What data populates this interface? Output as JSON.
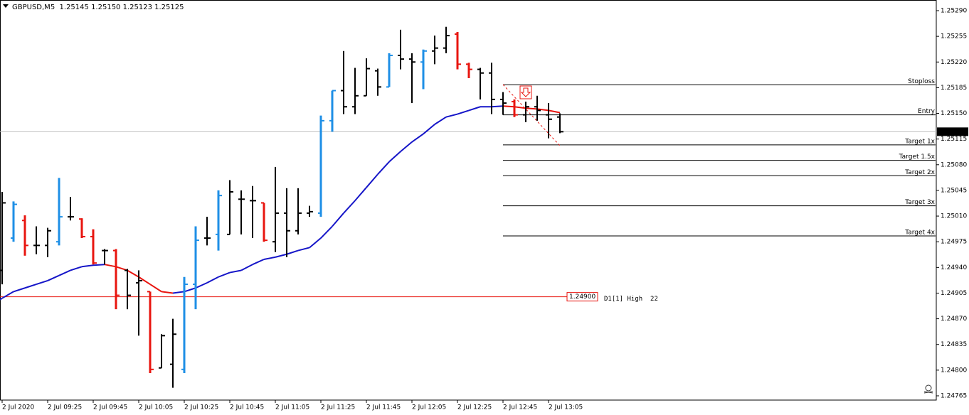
{
  "chart_data": {
    "type": "ohlc",
    "title": "GBPUSD,M5  1.25145 1.25150 1.25123 1.25125",
    "open": [
      1.24936,
      1.2498,
      1.25004,
      1.2497,
      1.2497,
      1.24975,
      1.25009,
      1.25006,
      1.24982,
      1.24963,
      1.24963,
      1.24936,
      1.24919,
      1.24907,
      1.24803,
      1.24808,
      1.24801,
      1.24917,
      1.2498,
      1.24985,
      1.24985,
      1.25033,
      1.25031,
      1.25028,
      1.24975,
      1.25014,
      1.2499,
      1.25014,
      1.25014,
      1.2514,
      1.25181,
      1.25159,
      1.25174,
      1.25208,
      1.25186,
      1.25229,
      1.25224,
      1.2522,
      1.25235,
      1.25239,
      1.25258,
      1.25217,
      1.2521,
      1.25205,
      1.25169,
      1.25166,
      1.25148,
      1.25159,
      1.25148,
      1.25145
    ],
    "high": [
      1.25043,
      1.2503,
      1.25011,
      1.24996,
      1.24994,
      1.25062,
      1.25036,
      1.25007,
      1.24992,
      1.24965,
      1.24965,
      1.24938,
      1.24936,
      1.24907,
      1.24849,
      1.2487,
      1.24927,
      1.24996,
      1.25009,
      1.25045,
      1.25059,
      1.25045,
      1.25051,
      1.25028,
      1.25077,
      1.25048,
      1.25048,
      1.25024,
      1.25147,
      1.25181,
      1.25235,
      1.25212,
      1.25225,
      1.25211,
      1.25232,
      1.25264,
      1.25232,
      1.25237,
      1.25256,
      1.25268,
      1.25261,
      1.25219,
      1.25212,
      1.25219,
      1.25179,
      1.25169,
      1.25166,
      1.25174,
      1.25164,
      1.2515
    ],
    "low": [
      1.24917,
      1.24975,
      1.24956,
      1.24958,
      1.24954,
      1.2497,
      1.25004,
      1.2498,
      1.24944,
      1.24944,
      1.24883,
      1.24883,
      1.24847,
      1.24796,
      1.24803,
      1.24776,
      1.24796,
      1.24883,
      1.2497,
      1.24963,
      1.24985,
      1.24985,
      1.2498,
      1.24975,
      1.24961,
      1.24954,
      1.24985,
      1.25009,
      1.25009,
      1.25125,
      1.25149,
      1.25149,
      1.25174,
      1.25174,
      1.25186,
      1.2521,
      1.25164,
      1.25183,
      1.25217,
      1.25232,
      1.2521,
      1.25198,
      1.25169,
      1.25149,
      1.25148,
      1.25145,
      1.25138,
      1.2514,
      1.25116,
      1.25123
    ],
    "close": [
      1.25028,
      1.25026,
      1.2497,
      1.2497,
      1.2499,
      1.25009,
      1.25009,
      1.24982,
      1.24946,
      1.24963,
      1.24902,
      1.24902,
      1.24922,
      1.24801,
      1.24847,
      1.24849,
      1.24917,
      1.24977,
      1.2498,
      1.25038,
      1.25043,
      1.25033,
      1.25031,
      1.24977,
      1.25014,
      1.2499,
      1.25014,
      1.25016,
      1.2514,
      1.25181,
      1.25159,
      1.25174,
      1.25211,
      1.25186,
      1.25229,
      1.25224,
      1.2522,
      1.25235,
      1.25239,
      1.25256,
      1.25217,
      1.2521,
      1.25205,
      1.25169,
      1.25164,
      1.25148,
      1.25159,
      1.25154,
      1.25142,
      1.25125
    ],
    "bar_colors": [
      "#000000",
      "#1e8fe6",
      "#e8150f",
      "#000000",
      "#000000",
      "#1e8fe6",
      "#000000",
      "#e8150f",
      "#e8150f",
      "#000000",
      "#e8150f",
      "#000000",
      "#000000",
      "#e8150f",
      "#000000",
      "#000000",
      "#1e8fe6",
      "#1e8fe6",
      "#000000",
      "#1e8fe6",
      "#000000",
      "#000000",
      "#000000",
      "#e8150f",
      "#000000",
      "#000000",
      "#000000",
      "#000000",
      "#1e8fe6",
      "#1e8fe6",
      "#000000",
      "#000000",
      "#000000",
      "#000000",
      "#1e8fe6",
      "#000000",
      "#000000",
      "#1e8fe6",
      "#000000",
      "#000000",
      "#e8150f",
      "#e8150f",
      "#000000",
      "#000000",
      "#000000",
      "#e8150f",
      "#000000",
      "#000000",
      "#000000",
      "#000000"
    ],
    "moving_average": {
      "color": "#1515c8",
      "down_color": "#e8150f",
      "values": [
        1.24898,
        1.24907,
        1.24912,
        1.24917,
        1.24922,
        1.24929,
        1.24936,
        1.24941,
        1.24943,
        1.24944,
        1.24941,
        1.24936,
        1.24927,
        1.24917,
        1.24907,
        1.24905,
        1.24907,
        1.24912,
        1.24919,
        1.24927,
        1.24933,
        1.24936,
        1.24944,
        1.24951,
        1.24954,
        1.24958,
        1.24963,
        1.24967,
        1.2498,
        1.24996,
        1.25014,
        1.25031,
        1.25049,
        1.25067,
        1.25084,
        1.25098,
        1.25111,
        1.25122,
        1.25135,
        1.25145,
        1.25149,
        1.25154,
        1.25159,
        1.25159,
        1.2516,
        1.25159,
        1.25157,
        1.25156,
        1.25154,
        1.25151
      ]
    },
    "levels": [
      {
        "label": "Stoploss",
        "value": 1.25189
      },
      {
        "label": "Entry",
        "value": 1.25148
      },
      {
        "label": "Target 1x",
        "value": 1.25107
      },
      {
        "label": "Target 1.5x",
        "value": 1.25086
      },
      {
        "label": "Target 2x",
        "value": 1.25065
      },
      {
        "label": "Target 3x",
        "value": 1.25024
      },
      {
        "label": "Target 4x",
        "value": 1.24983
      }
    ],
    "high_level": {
      "value": 1.249,
      "value_label": "1.24900",
      "text": "D1[1] High  22",
      "color": "#e8150f"
    },
    "current_price": {
      "value": 1.25125,
      "label": "1.25125"
    },
    "ylim": [
      1.24765,
      1.2529
    ],
    "yticks": [
      {
        "value": 1.2529,
        "label": "1.25290"
      },
      {
        "value": 1.25255,
        "label": "1.25255"
      },
      {
        "value": 1.2522,
        "label": "1.25220"
      },
      {
        "value": 1.25185,
        "label": "1.25185"
      },
      {
        "value": 1.2515,
        "label": "1.25150"
      },
      {
        "value": 1.25115,
        "label": "1.25115"
      },
      {
        "value": 1.2508,
        "label": "1.25080"
      },
      {
        "value": 1.25045,
        "label": "1.25045"
      },
      {
        "value": 1.2501,
        "label": "1.25010"
      },
      {
        "value": 1.24975,
        "label": "1.24975"
      },
      {
        "value": 1.2494,
        "label": "1.24940"
      },
      {
        "value": 1.24905,
        "label": "1.24905"
      },
      {
        "value": 1.2487,
        "label": "1.24870"
      },
      {
        "value": 1.24835,
        "label": "1.24835"
      },
      {
        "value": 1.248,
        "label": "1.24800"
      },
      {
        "value": 1.24765,
        "label": "1.24765"
      }
    ],
    "xticks": [
      {
        "value": 0,
        "label": "2 Jul 2020"
      },
      {
        "value": 4,
        "label": "2 Jul 09:25"
      },
      {
        "value": 8,
        "label": "2 Jul 09:45"
      },
      {
        "value": 12,
        "label": "2 Jul 10:05"
      },
      {
        "value": 16,
        "label": "2 Jul 10:25"
      },
      {
        "value": 20,
        "label": "2 Jul 10:45"
      },
      {
        "value": 24,
        "label": "2 Jul 11:05"
      },
      {
        "value": 28,
        "label": "2 Jul 11:25"
      },
      {
        "value": 32,
        "label": "2 Jul 11:45"
      },
      {
        "value": 36,
        "label": "2 Jul 12:05"
      },
      {
        "value": 40,
        "label": "2 Jul 12:25"
      },
      {
        "value": 44,
        "label": "2 Jul 12:45"
      },
      {
        "value": 48,
        "label": "2 Jul 13:05"
      }
    ]
  }
}
